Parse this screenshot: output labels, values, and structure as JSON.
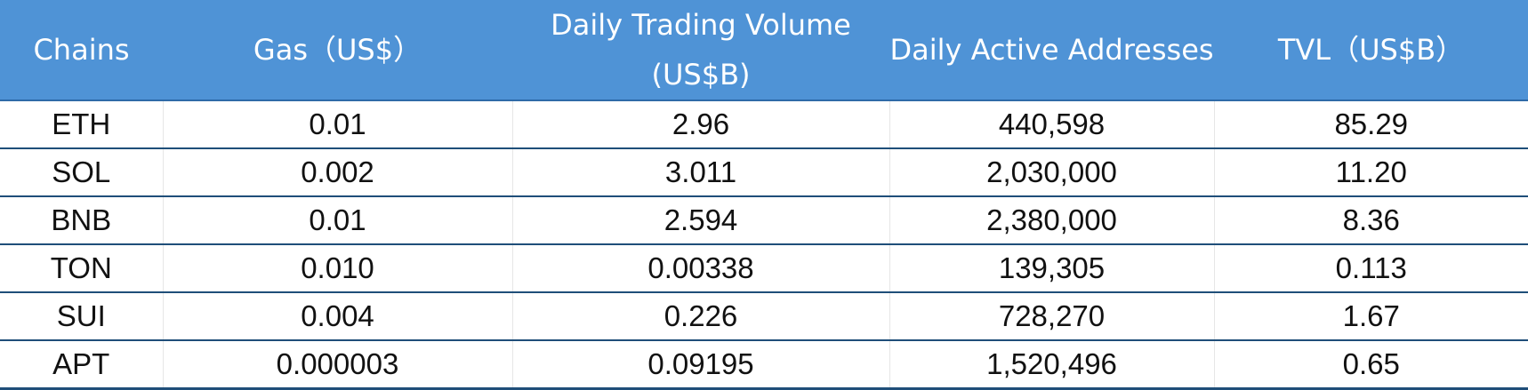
{
  "chart_data": {
    "type": "table",
    "columns": [
      "Chains",
      "Gas（US$）",
      "Daily Trading Volume (US$B)",
      "Daily Active Addresses",
      "TVL（US$B）"
    ],
    "rows": [
      [
        "ETH",
        "0.01",
        "2.96",
        "440,598",
        "85.29"
      ],
      [
        "SOL",
        "0.002",
        "3.011",
        "2,030,000",
        "11.20"
      ],
      [
        "BNB",
        "0.01",
        "2.594",
        "2,380,000",
        "8.36"
      ],
      [
        "TON",
        "0.010",
        "0.00338",
        "139,305",
        "0.113"
      ],
      [
        "SUI",
        "0.004",
        "0.226",
        "728,270",
        "1.67"
      ],
      [
        "APT",
        "0.000003",
        "0.09195",
        "1,520,496",
        "0.65"
      ]
    ],
    "header_bg": "#4f93d6",
    "header_text_color": "#ffffff",
    "row_border_color": "#1f4e79"
  }
}
